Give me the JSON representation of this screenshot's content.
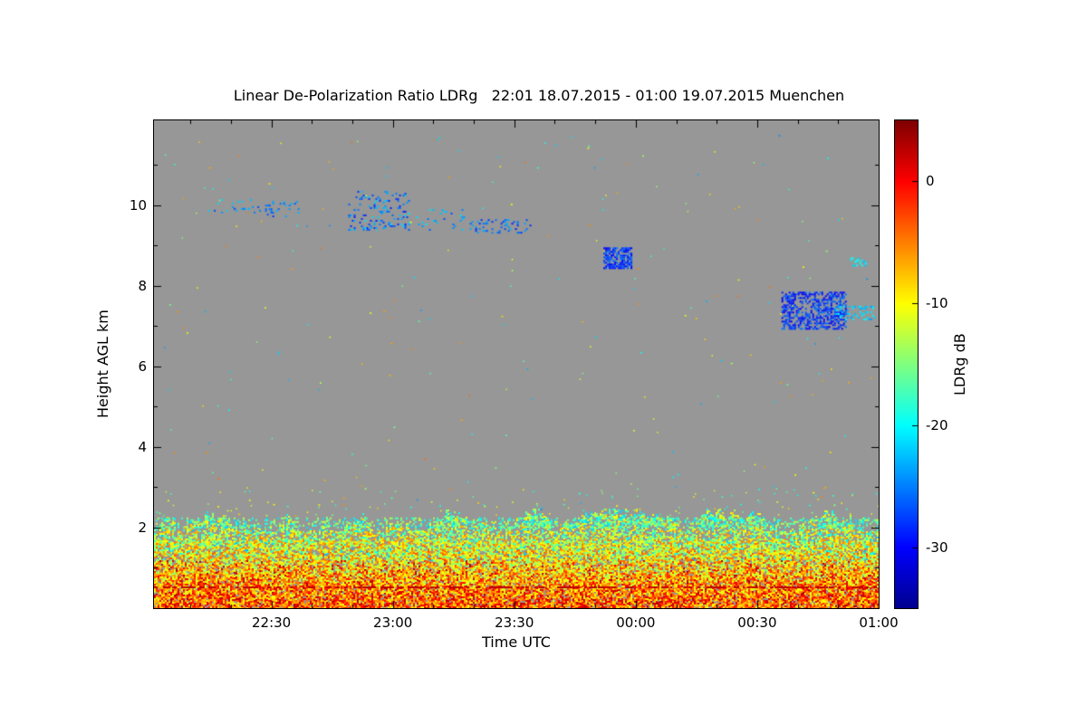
{
  "chart_data": {
    "type": "heatmap",
    "title": "Linear De-Polarization Ratio LDRg   22:01 18.07.2015 - 01:00 19.07.2015 Muenchen",
    "xlabel": "Time UTC",
    "ylabel": "Height AGL km",
    "x_start_label": "22:01 18.07.2015",
    "x_end_label": "01:00 19.07.2015",
    "x_range_minutes": [
      0,
      179
    ],
    "y_range_km": [
      0,
      12.1
    ],
    "x_ticks": [
      {
        "label": "22:30",
        "minutes": 29
      },
      {
        "label": "23:00",
        "minutes": 59
      },
      {
        "label": "23:30",
        "minutes": 89
      },
      {
        "label": "00:00",
        "minutes": 119
      },
      {
        "label": "00:30",
        "minutes": 149
      },
      {
        "label": "01:00",
        "minutes": 179
      }
    ],
    "y_ticks": [
      2,
      4,
      6,
      8,
      10
    ],
    "no_data_color": "#979797",
    "colorbar": {
      "label": "LDRg dB",
      "ticks": [
        0,
        -10,
        -20,
        -30
      ],
      "range_db": [
        -35,
        5
      ],
      "colormap": "jet",
      "stops": [
        [
          0.0,
          0,
          0,
          143
        ],
        [
          0.125,
          0,
          0,
          255
        ],
        [
          0.25,
          0,
          127,
          255
        ],
        [
          0.375,
          0,
          255,
          255
        ],
        [
          0.5,
          127,
          255,
          127
        ],
        [
          0.625,
          255,
          255,
          0
        ],
        [
          0.75,
          255,
          127,
          0
        ],
        [
          0.875,
          255,
          0,
          0
        ],
        [
          1.0,
          127,
          0,
          0
        ]
      ]
    },
    "features": [
      {
        "name": "cirrus-2215",
        "kind": "patch",
        "t": [
          13,
          26
        ],
        "h": [
          9.8,
          10.15
        ],
        "db": -24,
        "spread": 3,
        "density": 0.1
      },
      {
        "name": "cirrus-2230",
        "kind": "patch",
        "t": [
          27,
          36
        ],
        "h": [
          9.7,
          10.1
        ],
        "db": -25,
        "spread": 3,
        "density": 0.12
      },
      {
        "name": "cirrus-2250",
        "kind": "patch",
        "t": [
          48,
          63
        ],
        "h": [
          9.4,
          10.35
        ],
        "db": -25,
        "spread": 4,
        "density": 0.14
      },
      {
        "name": "cirrus-2305",
        "kind": "patch",
        "t": [
          63,
          77
        ],
        "h": [
          9.4,
          9.9
        ],
        "db": -24,
        "spread": 3,
        "density": 0.1
      },
      {
        "name": "cirrus-2325",
        "kind": "patch",
        "t": [
          78,
          93
        ],
        "h": [
          9.3,
          9.65
        ],
        "db": -26,
        "spread": 3,
        "density": 0.18
      },
      {
        "name": "cloud-2355",
        "kind": "patch",
        "t": [
          111,
          118
        ],
        "h": [
          8.45,
          8.95
        ],
        "db": -28,
        "spread": 3,
        "density": 0.75
      },
      {
        "name": "cloud-0042",
        "kind": "patch",
        "t": [
          155,
          171
        ],
        "h": [
          6.95,
          7.85
        ],
        "db": -28,
        "spread": 3,
        "density": 0.55
      },
      {
        "name": "cloud-0052-fringe",
        "kind": "patch",
        "t": [
          168,
          178
        ],
        "h": [
          7.15,
          7.5
        ],
        "db": -22,
        "spread": 2,
        "density": 0.35
      },
      {
        "name": "speck-0055-86km",
        "kind": "patch",
        "t": [
          172,
          176
        ],
        "h": [
          8.5,
          8.7
        ],
        "db": -21,
        "spread": 2,
        "density": 0.4
      },
      {
        "name": "bl-top-band",
        "kind": "patch",
        "t": [
          0,
          179
        ],
        "h": [
          2.0,
          2.25
        ],
        "db": -17,
        "spread": 5,
        "density": 0.3
      },
      {
        "name": "surface-echo-line",
        "kind": "line",
        "t": [
          0,
          179
        ],
        "h": 0.55,
        "db": 2.5
      },
      {
        "name": "bl-overshoot-specks",
        "kind": "speckle",
        "count": 120,
        "h": [
          2.3,
          3.0
        ],
        "db_choices": [
          -14,
          -18,
          -10
        ]
      },
      {
        "name": "sparse-speckle",
        "kind": "speckle",
        "count": 240,
        "h": [
          2.3,
          11.8
        ],
        "db_choices": [
          -20,
          -15,
          -10,
          -6,
          -23
        ]
      }
    ],
    "boundary_layer": {
      "h_top_km": 2.1,
      "db_near_surface": -4,
      "db_at_top": -13,
      "db_jitter": 7,
      "description": "dense noisy depolarization echoes below ~2.1 km, mostly -15 to 0 dB"
    }
  }
}
